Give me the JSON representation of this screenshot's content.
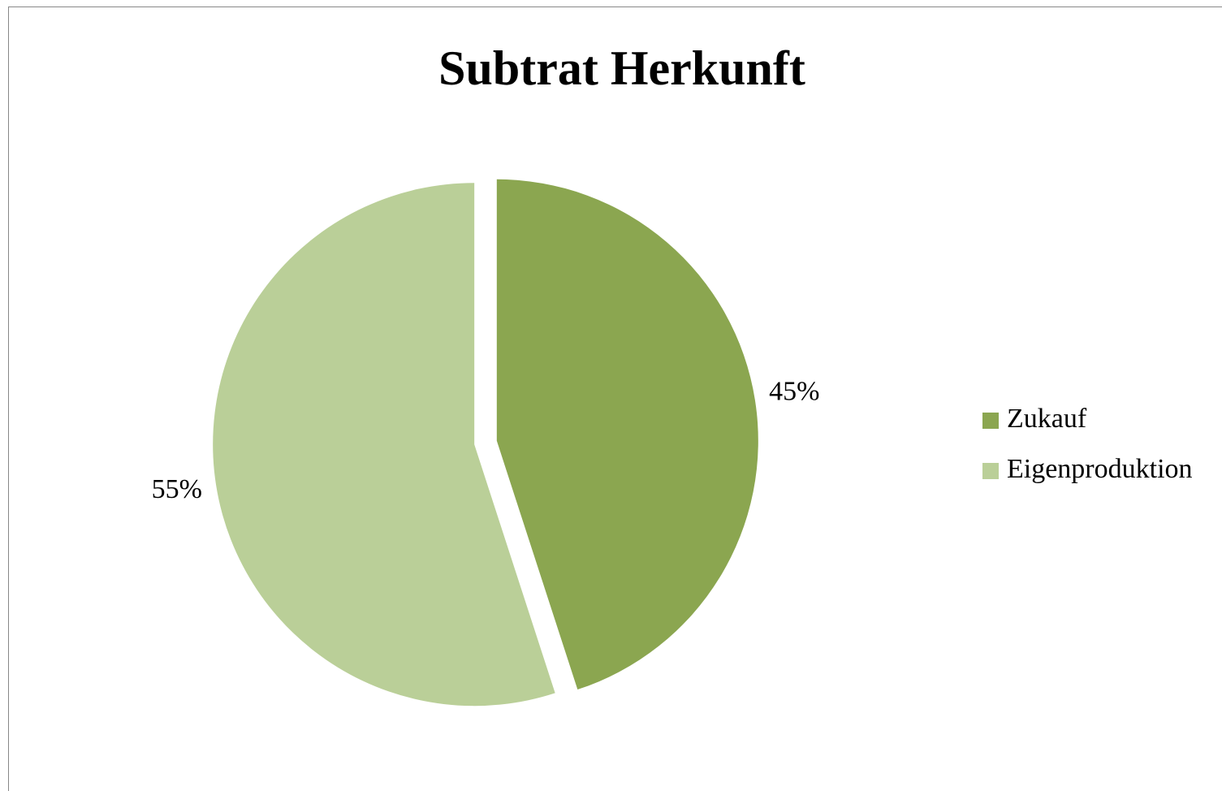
{
  "chart_data": {
    "type": "pie",
    "title": "Subtrat Herkunft",
    "categories": [
      "Zukauf",
      "Eigenproduktion"
    ],
    "values": [
      45,
      55
    ],
    "value_labels": [
      "45%",
      "55%"
    ],
    "colors": [
      "#8ba650",
      "#bacf98"
    ],
    "legend": "right"
  }
}
